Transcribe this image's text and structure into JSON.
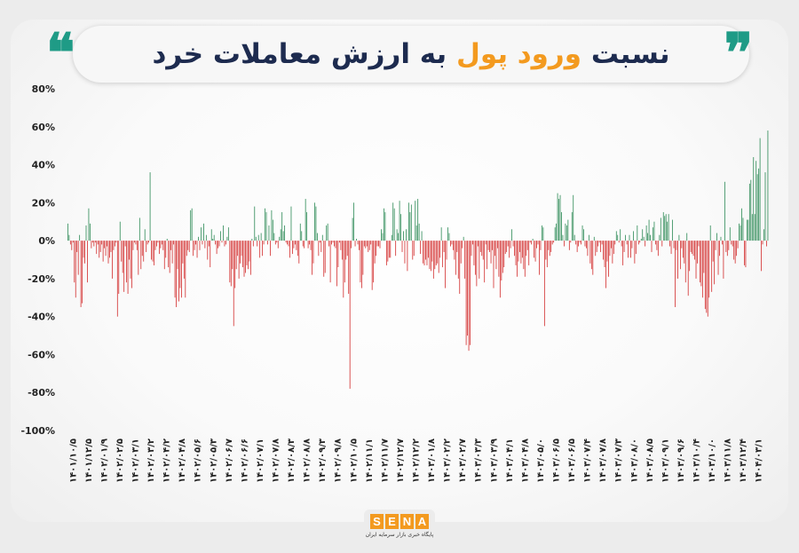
{
  "title": {
    "part1": "نسبت",
    "highlight": "ورود پول",
    "part2": "به ارزش معاملات خرد",
    "accent_color": "#f39a1f",
    "text_color": "#1d2b4f",
    "quote_color": "#1f9b86"
  },
  "logo": {
    "name": "SENA",
    "tagline": "پایگاه خبری بازار سرمایه ایران",
    "color": "#f39a1f"
  },
  "chart_data": {
    "type": "bar",
    "title": "نسبت ورود پول به ارزش معاملات خرد",
    "ylim": [
      -100,
      80
    ],
    "yticks": [
      "80%",
      "60%",
      "40%",
      "20%",
      "0%",
      "-20%",
      "-40%",
      "-60%",
      "-80%",
      "-100%"
    ],
    "ytick_values": [
      80,
      60,
      40,
      20,
      0,
      -20,
      -40,
      -60,
      -80,
      -100
    ],
    "positive_color": "#2e8b57",
    "negative_color": "#d32f2f",
    "grid": false,
    "xtick_labels": [
      "۱۴۰۱/۱۰/۵",
      "۱۴۰۱/۱۲/۵",
      "۱۴۰۲/۰۱/۹",
      "۱۴۰۲/۰۲/۵",
      "۱۴۰۲/۰۳/۱",
      "۱۴۰۲/۰۳/۲",
      "۱۴۰۲/۰۴/۲",
      "۱۴۰۲/۰۴/۸",
      "۱۴۰۲/۰۵/۶",
      "۱۴۰۲/۰۵/۳",
      "۱۴۰۲/۰۶/۷",
      "۱۴۰۲/۰۶/۶",
      "۱۴۰۲/۰۷/۱",
      "۱۴۰۲/۰۷/۸",
      "۱۴۰۲/۰۸/۳",
      "۱۴۰۲/۰۸/۸",
      "۱۴۰۲/۰۹/۳",
      "۱۴۰۲/۰۹/۸",
      "۱۴۰۲/۱۰/۵",
      "۱۴۰۲/۱۱/۱",
      "۱۴۰۲/۱۱/۷",
      "۱۴۰۲/۱۲/۷",
      "۱۴۰۲/۱۲/۲",
      "۱۴۰۳/۰۱/۸",
      "۱۴۰۳/۰۲/۲",
      "۱۴۰۳/۰۲/۷",
      "۱۴۰۳/۰۳/۳",
      "۱۴۰۳/۰۳/۹",
      "۱۴۰۳/۰۴/۱",
      "۱۴۰۳/۰۴/۸",
      "۱۴۰۳/۰۵/۰",
      "۱۴۰۳/۰۶/۵",
      "۱۴۰۳/۰۶/۵",
      "۱۴۰۳/۰۷/۴",
      "۱۴۰۳/۰۷/۸",
      "۱۴۰۳/۰۷/۳",
      "۱۴۰۳/۰۸/۰",
      "۱۴۰۳/۰۸/۵",
      "۱۴۰۳/۰۹/۱",
      "۱۴۰۳/۰۹/۶",
      "۱۴۰۳/۱۰/۴",
      "۱۴۰۳/۱۰/۰",
      "۱۴۰۳/۱۱/۸",
      "۱۴۰۳/۱۲/۴",
      "۱۴۰۴/۰۳/۱"
    ],
    "values": [
      9,
      3,
      -2,
      -5,
      -1,
      -22,
      -30,
      -6,
      -18,
      3,
      -35,
      -33,
      -9,
      -12,
      8,
      -22,
      17,
      9,
      -4,
      -1,
      -3,
      -1,
      -7,
      -2,
      -9,
      -6,
      -2,
      -11,
      -4,
      -8,
      -3,
      -12,
      -9,
      -6,
      -20,
      -5,
      -3,
      -1,
      -40,
      -28,
      10,
      -11,
      -17,
      -27,
      -3,
      -22,
      -28,
      -10,
      -20,
      -25,
      -5,
      -1,
      -2,
      -5,
      -18,
      12,
      -15,
      -8,
      -11,
      6,
      -6,
      -2,
      -1,
      36,
      -10,
      -11,
      -13,
      -5,
      -3,
      -1,
      -7,
      -4,
      -2,
      -5,
      -15,
      -9,
      1,
      -14,
      -17,
      -5,
      -12,
      -2,
      -30,
      -35,
      -15,
      -32,
      -25,
      -30,
      -12,
      -20,
      -30,
      -8,
      -5,
      -6,
      16,
      17,
      -8,
      -5,
      -2,
      -9,
      2,
      -5,
      7,
      -2,
      9,
      -4,
      3,
      -10,
      -3,
      -14,
      6,
      1,
      3,
      -2,
      -7,
      -4,
      -3,
      5,
      -1,
      8,
      -3,
      -2,
      2,
      7,
      -22,
      -24,
      -15,
      -45,
      -25,
      -15,
      -8,
      -20,
      -12,
      -8,
      -14,
      -19,
      -17,
      -13,
      -15,
      -11,
      -18,
      1,
      -3,
      18,
      2,
      -3,
      3,
      -9,
      4,
      -8,
      -2,
      17,
      15,
      -2,
      8,
      -8,
      16,
      11,
      4,
      -2,
      -1,
      -4,
      2,
      6,
      15,
      5,
      8,
      -1,
      -2,
      -3,
      -9,
      18,
      -7,
      -4,
      -2,
      -5,
      -8,
      -12,
      9,
      5,
      -3,
      -4,
      22,
      15,
      -4,
      -2,
      -5,
      -18,
      -12,
      20,
      18,
      4,
      -8,
      -1,
      -6,
      3,
      -19,
      -17,
      8,
      9,
      -3,
      -22,
      -2,
      -1,
      -3,
      -4,
      -24,
      -14,
      -1,
      -5,
      -10,
      -30,
      -22,
      -10,
      -8,
      -28,
      -78,
      -4,
      12,
      20,
      -3,
      1,
      -2,
      -5,
      -22,
      -25,
      -18,
      -3,
      -4,
      -3,
      -6,
      -5,
      -2,
      -26,
      -22,
      -12,
      -8,
      -3,
      -3,
      -4,
      6,
      4,
      17,
      15,
      -13,
      -11,
      -9,
      -9,
      3,
      20,
      17,
      -8,
      6,
      4,
      21,
      14,
      -6,
      5,
      -12,
      6,
      -16,
      20,
      15,
      19,
      -10,
      -8,
      21,
      8,
      22,
      9,
      -7,
      5,
      -12,
      -13,
      -10,
      -13,
      -9,
      -15,
      -16,
      -11,
      -20,
      -15,
      -13,
      -12,
      -17,
      -9,
      7,
      -14,
      -6,
      -25,
      -10,
      7,
      4,
      -3,
      -2,
      -5,
      -10,
      -18,
      -6,
      -20,
      -28,
      -12,
      -4,
      2,
      -20,
      -55,
      -50,
      -58,
      -55,
      -8,
      -2,
      -13,
      -18,
      -24,
      -3,
      -20,
      -6,
      -8,
      -10,
      -22,
      -2,
      -15,
      -5,
      -6,
      -12,
      -5,
      -25,
      -8,
      -15,
      -4,
      -19,
      -30,
      -21,
      -17,
      -14,
      -7,
      -6,
      -3,
      -9,
      -4,
      6,
      -3,
      -8,
      -13,
      -19,
      -11,
      -6,
      -12,
      -9,
      -15,
      -19,
      -8,
      -5,
      -13,
      -1,
      -2,
      1,
      -9,
      -11,
      -4,
      -2,
      -18,
      -5,
      8,
      7,
      -45,
      -10,
      -14,
      -5,
      -8,
      -6,
      -2,
      -1,
      7,
      9,
      25,
      22,
      24,
      15,
      3,
      -3,
      9,
      8,
      11,
      -5,
      -1,
      15,
      24,
      3,
      -2,
      -6,
      -3,
      -1,
      -2,
      8,
      6,
      -3,
      -4,
      -8,
      3,
      -12,
      -15,
      -18,
      2,
      -8,
      -6,
      -3,
      -1,
      -6,
      -2,
      -10,
      -14,
      -25,
      -11,
      -19,
      -8,
      -4,
      -12,
      -7,
      -2,
      5,
      3,
      -1,
      6,
      -3,
      -13,
      -6,
      3,
      -2,
      -9,
      3,
      -9,
      -4,
      5,
      -12,
      -7,
      8,
      -2,
      -1,
      1,
      6,
      2,
      -3,
      8,
      4,
      11,
      3,
      -6,
      7,
      10,
      -2,
      -5,
      -8,
      3,
      12,
      -3,
      15,
      13,
      14,
      10,
      14,
      -3,
      -7,
      11,
      -4,
      -35,
      -5,
      -20,
      3,
      -15,
      -4,
      -9,
      -12,
      -22,
      4,
      -29,
      -16,
      -6,
      -7,
      -8,
      -10,
      -20,
      -12,
      -3,
      -22,
      -24,
      -30,
      -17,
      -36,
      -38,
      -40,
      -30,
      8,
      -27,
      -11,
      -23,
      -5,
      4,
      -18,
      -8,
      2,
      -2,
      -20,
      31,
      -6,
      -8,
      -5,
      7,
      -2,
      -3,
      -10,
      -12,
      -8,
      -4,
      9,
      8,
      17,
      12,
      -13,
      -14,
      11,
      11,
      30,
      32,
      14,
      44,
      14,
      42,
      35,
      38,
      54,
      -16,
      -2,
      6,
      36,
      -3,
      58
    ]
  }
}
